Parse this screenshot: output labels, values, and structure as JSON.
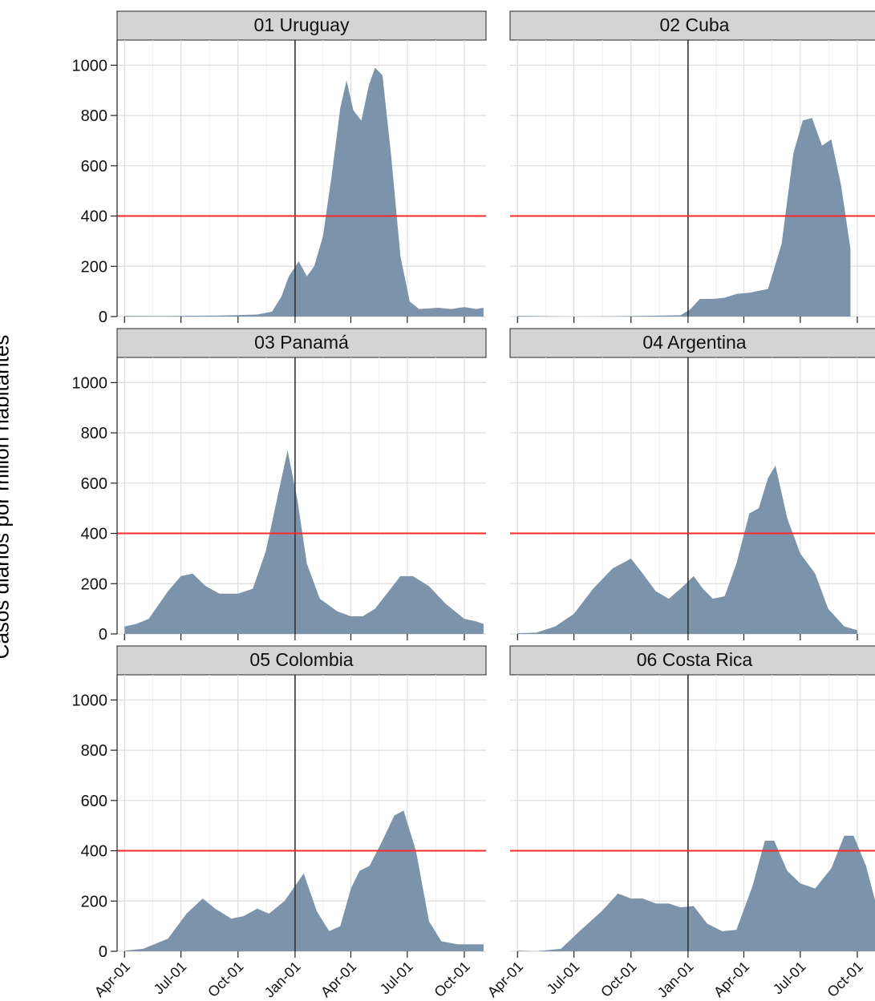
{
  "chart_data": {
    "type": "area",
    "ylabel": "Casos diarios por millón habitantes",
    "ylim": [
      0,
      1100
    ],
    "yticks": [
      0,
      200,
      400,
      600,
      800,
      1000
    ],
    "xlim": [
      "2020-03-20",
      "2021-11-05"
    ],
    "xticks": [
      "2020-04-01",
      "2020-07-01",
      "2020-10-01",
      "2021-01-01",
      "2021-04-01",
      "2021-07-01",
      "2021-10-01"
    ],
    "xtick_labels": [
      "Apr-01",
      "Jul-01",
      "Oct-01",
      "Jan-01",
      "Apr-01",
      "Jul-01",
      "Oct-01"
    ],
    "reference_hline": {
      "value": 400,
      "color": "#ff2a2a"
    },
    "reference_vline": {
      "value": "2021-01-01",
      "color": "#333333"
    },
    "fill_color": "#7b93ab",
    "grid": true,
    "facets": [
      {
        "title": "01 Uruguay",
        "series": [
          [
            "2020-04-01",
            3
          ],
          [
            "2020-06-01",
            2
          ],
          [
            "2020-09-01",
            4
          ],
          [
            "2020-11-01",
            8
          ],
          [
            "2020-11-25",
            20
          ],
          [
            "2020-12-10",
            80
          ],
          [
            "2020-12-22",
            160
          ],
          [
            "2021-01-07",
            220
          ],
          [
            "2021-01-20",
            160
          ],
          [
            "2021-02-01",
            200
          ],
          [
            "2021-02-15",
            320
          ],
          [
            "2021-03-01",
            560
          ],
          [
            "2021-03-15",
            830
          ],
          [
            "2021-03-25",
            940
          ],
          [
            "2021-04-05",
            820
          ],
          [
            "2021-04-18",
            780
          ],
          [
            "2021-04-30",
            920
          ],
          [
            "2021-05-10",
            990
          ],
          [
            "2021-05-22",
            960
          ],
          [
            "2021-06-05",
            640
          ],
          [
            "2021-06-20",
            240
          ],
          [
            "2021-07-05",
            60
          ],
          [
            "2021-07-20",
            30
          ],
          [
            "2021-08-20",
            35
          ],
          [
            "2021-09-10",
            30
          ],
          [
            "2021-10-01",
            38
          ],
          [
            "2021-10-20",
            30
          ],
          [
            "2021-11-01",
            35
          ]
        ]
      },
      {
        "title": "02 Cuba",
        "series": [
          [
            "2020-04-01",
            3
          ],
          [
            "2020-07-01",
            0
          ],
          [
            "2020-10-01",
            2
          ],
          [
            "2020-12-20",
            5
          ],
          [
            "2021-01-05",
            30
          ],
          [
            "2021-01-20",
            70
          ],
          [
            "2021-02-10",
            70
          ],
          [
            "2021-03-01",
            75
          ],
          [
            "2021-03-20",
            90
          ],
          [
            "2021-04-10",
            95
          ],
          [
            "2021-05-10",
            110
          ],
          [
            "2021-06-01",
            290
          ],
          [
            "2021-06-20",
            650
          ],
          [
            "2021-07-05",
            780
          ],
          [
            "2021-07-20",
            790
          ],
          [
            "2021-08-05",
            680
          ],
          [
            "2021-08-20",
            705
          ],
          [
            "2021-09-05",
            520
          ],
          [
            "2021-09-20",
            270
          ]
        ]
      },
      {
        "title": "03 Panamá",
        "series": [
          [
            "2020-04-01",
            30
          ],
          [
            "2020-04-20",
            40
          ],
          [
            "2020-05-10",
            60
          ],
          [
            "2020-06-10",
            170
          ],
          [
            "2020-07-01",
            230
          ],
          [
            "2020-07-20",
            240
          ],
          [
            "2020-08-10",
            190
          ],
          [
            "2020-09-01",
            160
          ],
          [
            "2020-10-01",
            160
          ],
          [
            "2020-10-25",
            180
          ],
          [
            "2020-11-15",
            330
          ],
          [
            "2020-12-05",
            560
          ],
          [
            "2020-12-20",
            730
          ],
          [
            "2021-01-05",
            530
          ],
          [
            "2021-01-20",
            280
          ],
          [
            "2021-02-10",
            140
          ],
          [
            "2021-03-10",
            90
          ],
          [
            "2021-04-01",
            70
          ],
          [
            "2021-04-20",
            70
          ],
          [
            "2021-05-10",
            100
          ],
          [
            "2021-06-01",
            170
          ],
          [
            "2021-06-20",
            230
          ],
          [
            "2021-07-10",
            230
          ],
          [
            "2021-08-05",
            190
          ],
          [
            "2021-09-01",
            120
          ],
          [
            "2021-10-01",
            60
          ],
          [
            "2021-10-20",
            50
          ],
          [
            "2021-11-01",
            40
          ]
        ]
      },
      {
        "title": "04 Argentina",
        "series": [
          [
            "2020-04-01",
            3
          ],
          [
            "2020-05-01",
            5
          ],
          [
            "2020-06-01",
            30
          ],
          [
            "2020-07-01",
            80
          ],
          [
            "2020-08-01",
            180
          ],
          [
            "2020-09-01",
            260
          ],
          [
            "2020-10-01",
            300
          ],
          [
            "2020-10-20",
            240
          ],
          [
            "2020-11-10",
            170
          ],
          [
            "2020-12-01",
            140
          ],
          [
            "2020-12-20",
            180
          ],
          [
            "2021-01-10",
            230
          ],
          [
            "2021-01-25",
            180
          ],
          [
            "2021-02-10",
            140
          ],
          [
            "2021-03-01",
            150
          ],
          [
            "2021-03-20",
            280
          ],
          [
            "2021-04-10",
            480
          ],
          [
            "2021-04-25",
            500
          ],
          [
            "2021-05-10",
            620
          ],
          [
            "2021-05-22",
            670
          ],
          [
            "2021-06-10",
            460
          ],
          [
            "2021-07-01",
            320
          ],
          [
            "2021-07-25",
            240
          ],
          [
            "2021-08-15",
            100
          ],
          [
            "2021-09-10",
            30
          ],
          [
            "2021-10-01",
            15
          ]
        ]
      },
      {
        "title": "05 Colombia",
        "series": [
          [
            "2020-04-01",
            3
          ],
          [
            "2020-05-01",
            10
          ],
          [
            "2020-06-10",
            50
          ],
          [
            "2020-07-10",
            150
          ],
          [
            "2020-08-05",
            210
          ],
          [
            "2020-08-25",
            170
          ],
          [
            "2020-09-20",
            130
          ],
          [
            "2020-10-10",
            140
          ],
          [
            "2020-11-01",
            170
          ],
          [
            "2020-11-20",
            150
          ],
          [
            "2020-12-15",
            200
          ],
          [
            "2021-01-01",
            260
          ],
          [
            "2021-01-15",
            310
          ],
          [
            "2021-02-05",
            160
          ],
          [
            "2021-02-25",
            80
          ],
          [
            "2021-03-15",
            100
          ],
          [
            "2021-04-01",
            250
          ],
          [
            "2021-04-15",
            320
          ],
          [
            "2021-05-01",
            340
          ],
          [
            "2021-05-20",
            430
          ],
          [
            "2021-06-10",
            540
          ],
          [
            "2021-06-25",
            560
          ],
          [
            "2021-07-15",
            400
          ],
          [
            "2021-08-05",
            120
          ],
          [
            "2021-08-25",
            40
          ],
          [
            "2021-09-20",
            28
          ],
          [
            "2021-10-15",
            28
          ],
          [
            "2021-11-01",
            28
          ]
        ]
      },
      {
        "title": "06 Costa Rica",
        "series": [
          [
            "2020-04-01",
            3
          ],
          [
            "2020-05-01",
            0
          ],
          [
            "2020-06-10",
            10
          ],
          [
            "2020-07-10",
            80
          ],
          [
            "2020-08-15",
            160
          ],
          [
            "2020-09-10",
            230
          ],
          [
            "2020-10-01",
            210
          ],
          [
            "2020-10-20",
            210
          ],
          [
            "2020-11-10",
            190
          ],
          [
            "2020-12-01",
            190
          ],
          [
            "2020-12-20",
            175
          ],
          [
            "2021-01-10",
            180
          ],
          [
            "2021-02-01",
            110
          ],
          [
            "2021-02-25",
            80
          ],
          [
            "2021-03-20",
            85
          ],
          [
            "2021-04-15",
            260
          ],
          [
            "2021-05-05",
            440
          ],
          [
            "2021-05-20",
            440
          ],
          [
            "2021-06-10",
            320
          ],
          [
            "2021-07-01",
            270
          ],
          [
            "2021-07-25",
            250
          ],
          [
            "2021-08-20",
            330
          ],
          [
            "2021-09-10",
            460
          ],
          [
            "2021-09-25",
            460
          ],
          [
            "2021-10-15",
            340
          ],
          [
            "2021-11-01",
            180
          ]
        ]
      }
    ]
  }
}
